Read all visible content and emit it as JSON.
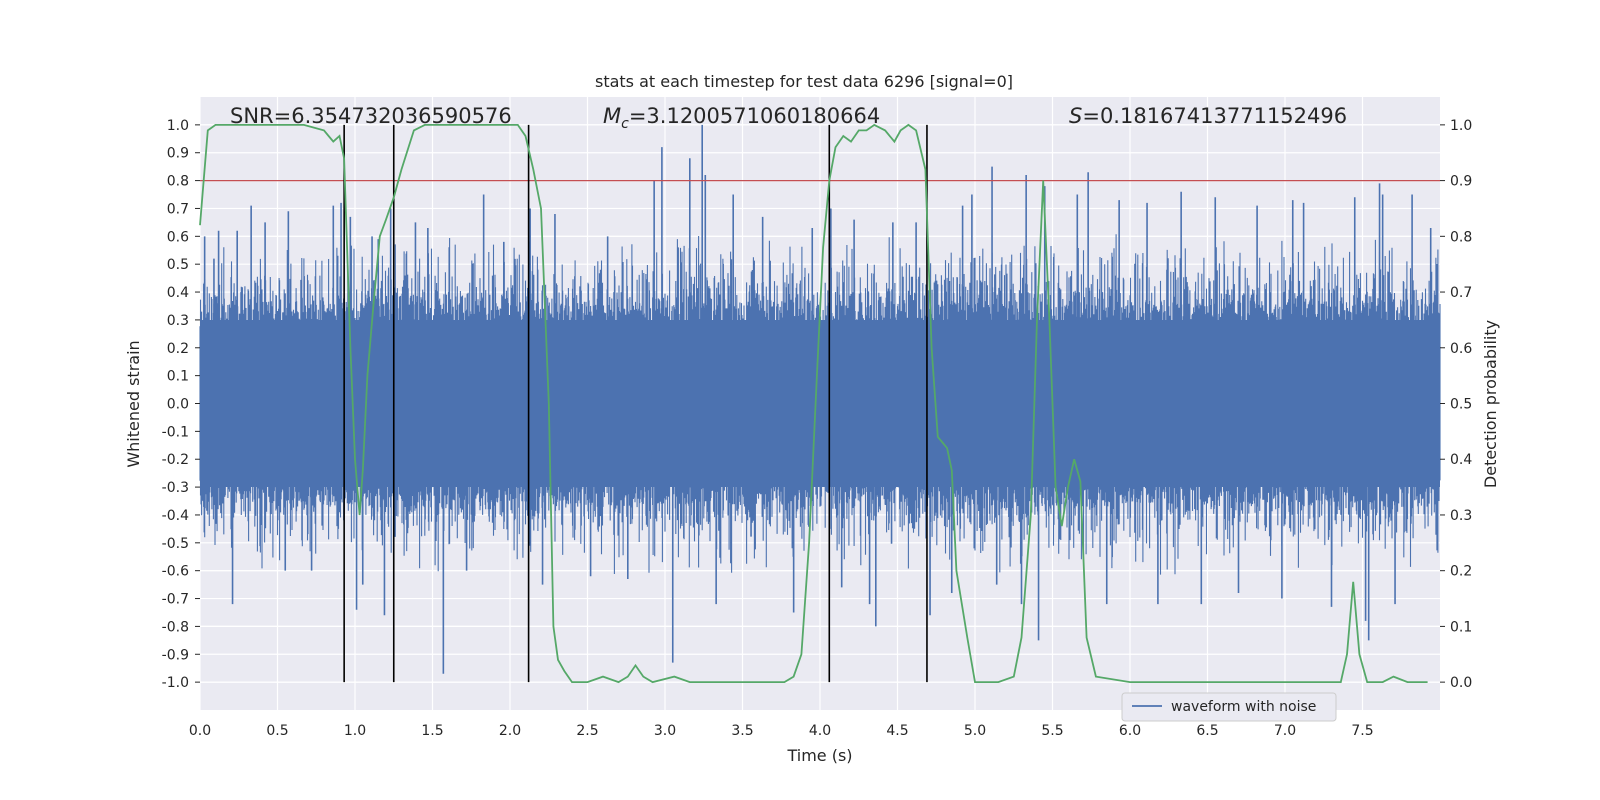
{
  "chart_data": {
    "type": "line",
    "title": "stats at each timestep for test data 6296 [signal=0]",
    "xlabel": "Time (s)",
    "ylabel": "Whitened strain",
    "y2label": "Detection probability",
    "xlim": [
      0.0,
      8.0
    ],
    "ylim": [
      -1.1,
      1.1
    ],
    "y2lim": [
      -0.05,
      1.05
    ],
    "xticks": [
      "0.0",
      "0.5",
      "1.0",
      "1.5",
      "2.0",
      "2.5",
      "3.0",
      "3.5",
      "4.0",
      "4.5",
      "5.0",
      "5.5",
      "6.0",
      "6.5",
      "7.0",
      "7.5"
    ],
    "yticks": [
      "1.0",
      "0.9",
      "0.8",
      "0.7",
      "0.6",
      "0.5",
      "0.4",
      "0.3",
      "0.2",
      "0.1",
      "0.0",
      "-0.1",
      "-0.2",
      "-0.3",
      "-0.4",
      "-0.5",
      "-0.6",
      "-0.7",
      "-0.8",
      "-0.9",
      "-1.0"
    ],
    "y2ticks": [
      "1.0",
      "0.9",
      "0.8",
      "0.7",
      "0.6",
      "0.5",
      "0.4",
      "0.3",
      "0.2",
      "0.1",
      "0.0"
    ],
    "annotations": {
      "snr": "SNR=6.354732036590576",
      "mc_symbol": "M",
      "mc_sub": "c",
      "mc_value": "=3.1200571060180664",
      "s_symbol": "S",
      "s_value": "=0.18167413771152496"
    },
    "threshold": 0.9,
    "vertical_lines": [
      0.93,
      1.25,
      2.12,
      4.06,
      4.69
    ],
    "series": [
      {
        "name": "waveform with noise",
        "color": "#4c72b0",
        "envelope": "noise",
        "spikes": [
          {
            "x": 0.03,
            "v": 0.6
          },
          {
            "x": 0.09,
            "v": 0.52
          },
          {
            "x": 0.12,
            "v": 0.62
          },
          {
            "x": 0.21,
            "v": -0.72
          },
          {
            "x": 0.24,
            "v": 0.62
          },
          {
            "x": 0.33,
            "v": 0.71
          },
          {
            "x": 0.42,
            "v": 0.65
          },
          {
            "x": 0.55,
            "v": -0.6
          },
          {
            "x": 0.57,
            "v": 0.69
          },
          {
            "x": 0.72,
            "v": -0.6
          },
          {
            "x": 0.86,
            "v": 0.71
          },
          {
            "x": 0.91,
            "v": 0.72
          },
          {
            "x": 0.97,
            "v": 0.67
          },
          {
            "x": 1.01,
            "v": -0.74
          },
          {
            "x": 1.05,
            "v": -0.65
          },
          {
            "x": 1.11,
            "v": 0.6
          },
          {
            "x": 1.15,
            "v": 0.59
          },
          {
            "x": 1.19,
            "v": -0.76
          },
          {
            "x": 1.23,
            "v": 0.7
          },
          {
            "x": 1.39,
            "v": 0.65
          },
          {
            "x": 1.47,
            "v": 0.63
          },
          {
            "x": 1.57,
            "v": -0.97
          },
          {
            "x": 1.72,
            "v": -0.6
          },
          {
            "x": 1.83,
            "v": 0.75
          },
          {
            "x": 1.96,
            "v": 0.58
          },
          {
            "x": 2.13,
            "v": 0.7
          },
          {
            "x": 2.21,
            "v": -0.65
          },
          {
            "x": 2.29,
            "v": 0.68
          },
          {
            "x": 2.52,
            "v": -0.62
          },
          {
            "x": 2.63,
            "v": 0.6
          },
          {
            "x": 2.76,
            "v": -0.63
          },
          {
            "x": 2.93,
            "v": 0.8
          },
          {
            "x": 2.98,
            "v": 0.92
          },
          {
            "x": 3.05,
            "v": -0.93
          },
          {
            "x": 3.16,
            "v": 0.88
          },
          {
            "x": 3.24,
            "v": 1.0
          },
          {
            "x": 3.26,
            "v": 0.82
          },
          {
            "x": 3.33,
            "v": -0.72
          },
          {
            "x": 3.44,
            "v": 0.75
          },
          {
            "x": 3.63,
            "v": 0.67
          },
          {
            "x": 3.83,
            "v": -0.75
          },
          {
            "x": 3.95,
            "v": 0.63
          },
          {
            "x": 4.07,
            "v": 0.7
          },
          {
            "x": 4.14,
            "v": -0.66
          },
          {
            "x": 4.22,
            "v": 0.66
          },
          {
            "x": 4.32,
            "v": -0.72
          },
          {
            "x": 4.36,
            "v": -0.8
          },
          {
            "x": 4.47,
            "v": 0.65
          },
          {
            "x": 4.62,
            "v": 0.65
          },
          {
            "x": 4.71,
            "v": -0.76
          },
          {
            "x": 4.85,
            "v": -0.68
          },
          {
            "x": 4.92,
            "v": 0.71
          },
          {
            "x": 4.98,
            "v": 0.75
          },
          {
            "x": 5.11,
            "v": 0.85
          },
          {
            "x": 5.14,
            "v": -0.65
          },
          {
            "x": 5.3,
            "v": -0.72
          },
          {
            "x": 5.33,
            "v": 0.82
          },
          {
            "x": 5.41,
            "v": -0.85
          },
          {
            "x": 5.45,
            "v": 0.78
          },
          {
            "x": 5.66,
            "v": 0.75
          },
          {
            "x": 5.73,
            "v": 0.83
          },
          {
            "x": 5.85,
            "v": -0.72
          },
          {
            "x": 5.93,
            "v": 0.73
          },
          {
            "x": 6.11,
            "v": 0.72
          },
          {
            "x": 6.18,
            "v": -0.72
          },
          {
            "x": 6.33,
            "v": 0.76
          },
          {
            "x": 6.46,
            "v": -0.72
          },
          {
            "x": 6.55,
            "v": 0.74
          },
          {
            "x": 6.7,
            "v": -0.68
          },
          {
            "x": 6.82,
            "v": 0.71
          },
          {
            "x": 6.98,
            "v": -0.7
          },
          {
            "x": 7.05,
            "v": 0.73
          },
          {
            "x": 7.12,
            "v": 0.72
          },
          {
            "x": 7.3,
            "v": -0.73
          },
          {
            "x": 7.45,
            "v": 0.74
          },
          {
            "x": 7.52,
            "v": -0.78
          },
          {
            "x": 7.54,
            "v": -0.85
          },
          {
            "x": 7.61,
            "v": 0.79
          },
          {
            "x": 7.63,
            "v": 0.75
          },
          {
            "x": 7.71,
            "v": -0.72
          },
          {
            "x": 7.82,
            "v": 0.75
          },
          {
            "x": 7.94,
            "v": 0.63
          }
        ]
      },
      {
        "name": "detection probability",
        "color": "#55a868",
        "axis": "right",
        "x": [
          0.0,
          0.05,
          0.1,
          0.2,
          0.4,
          0.67,
          0.8,
          0.83,
          0.86,
          0.9,
          0.93,
          0.97,
          1.0,
          1.03,
          1.05,
          1.08,
          1.12,
          1.16,
          1.2,
          1.25,
          1.3,
          1.38,
          1.45,
          1.55,
          1.7,
          1.85,
          2.0,
          2.05,
          2.1,
          2.15,
          2.2,
          2.25,
          2.28,
          2.31,
          2.35,
          2.4,
          2.45,
          2.5,
          2.6,
          2.7,
          2.76,
          2.81,
          2.86,
          2.92,
          3.06,
          3.16,
          3.3,
          3.5,
          3.7,
          3.77,
          3.83,
          3.88,
          3.93,
          3.98,
          4.02,
          4.06,
          4.1,
          4.15,
          4.2,
          4.25,
          4.3,
          4.35,
          4.42,
          4.48,
          4.52,
          4.57,
          4.62,
          4.68,
          4.72,
          4.76,
          4.79,
          4.82,
          4.85,
          4.88,
          4.95,
          5.0,
          5.05,
          5.15,
          5.25,
          5.3,
          5.36,
          5.4,
          5.44,
          5.48,
          5.52,
          5.56,
          5.6,
          5.64,
          5.68,
          5.72,
          5.78,
          6.0,
          6.5,
          6.7,
          7.0,
          7.36,
          7.4,
          7.44,
          7.48,
          7.53,
          7.58,
          7.63,
          7.7,
          7.79,
          7.92
        ],
        "y": [
          0.82,
          0.99,
          1.0,
          1.0,
          1.0,
          1.0,
          0.99,
          0.98,
          0.97,
          0.98,
          0.94,
          0.6,
          0.4,
          0.3,
          0.38,
          0.55,
          0.68,
          0.8,
          0.83,
          0.87,
          0.92,
          0.99,
          1.0,
          1.0,
          1.0,
          1.0,
          1.0,
          1.0,
          0.98,
          0.92,
          0.85,
          0.5,
          0.1,
          0.04,
          0.02,
          0.0,
          0.0,
          0.0,
          0.01,
          0.0,
          0.01,
          0.03,
          0.01,
          0.0,
          0.01,
          0.0,
          0.0,
          0.0,
          0.0,
          0.0,
          0.01,
          0.05,
          0.25,
          0.55,
          0.78,
          0.9,
          0.96,
          0.98,
          0.97,
          0.99,
          0.99,
          1.0,
          0.99,
          0.97,
          0.99,
          1.0,
          0.99,
          0.92,
          0.6,
          0.44,
          0.43,
          0.42,
          0.38,
          0.2,
          0.08,
          0.0,
          0.0,
          0.0,
          0.01,
          0.08,
          0.3,
          0.65,
          0.9,
          0.65,
          0.35,
          0.28,
          0.35,
          0.4,
          0.36,
          0.08,
          0.01,
          0.0,
          0.0,
          0.0,
          0.0,
          0.0,
          0.05,
          0.18,
          0.05,
          0.0,
          0.0,
          0.0,
          0.01,
          0.0,
          0.0
        ]
      }
    ],
    "legend": {
      "label": "waveform with noise",
      "placement": "lower-right"
    }
  }
}
